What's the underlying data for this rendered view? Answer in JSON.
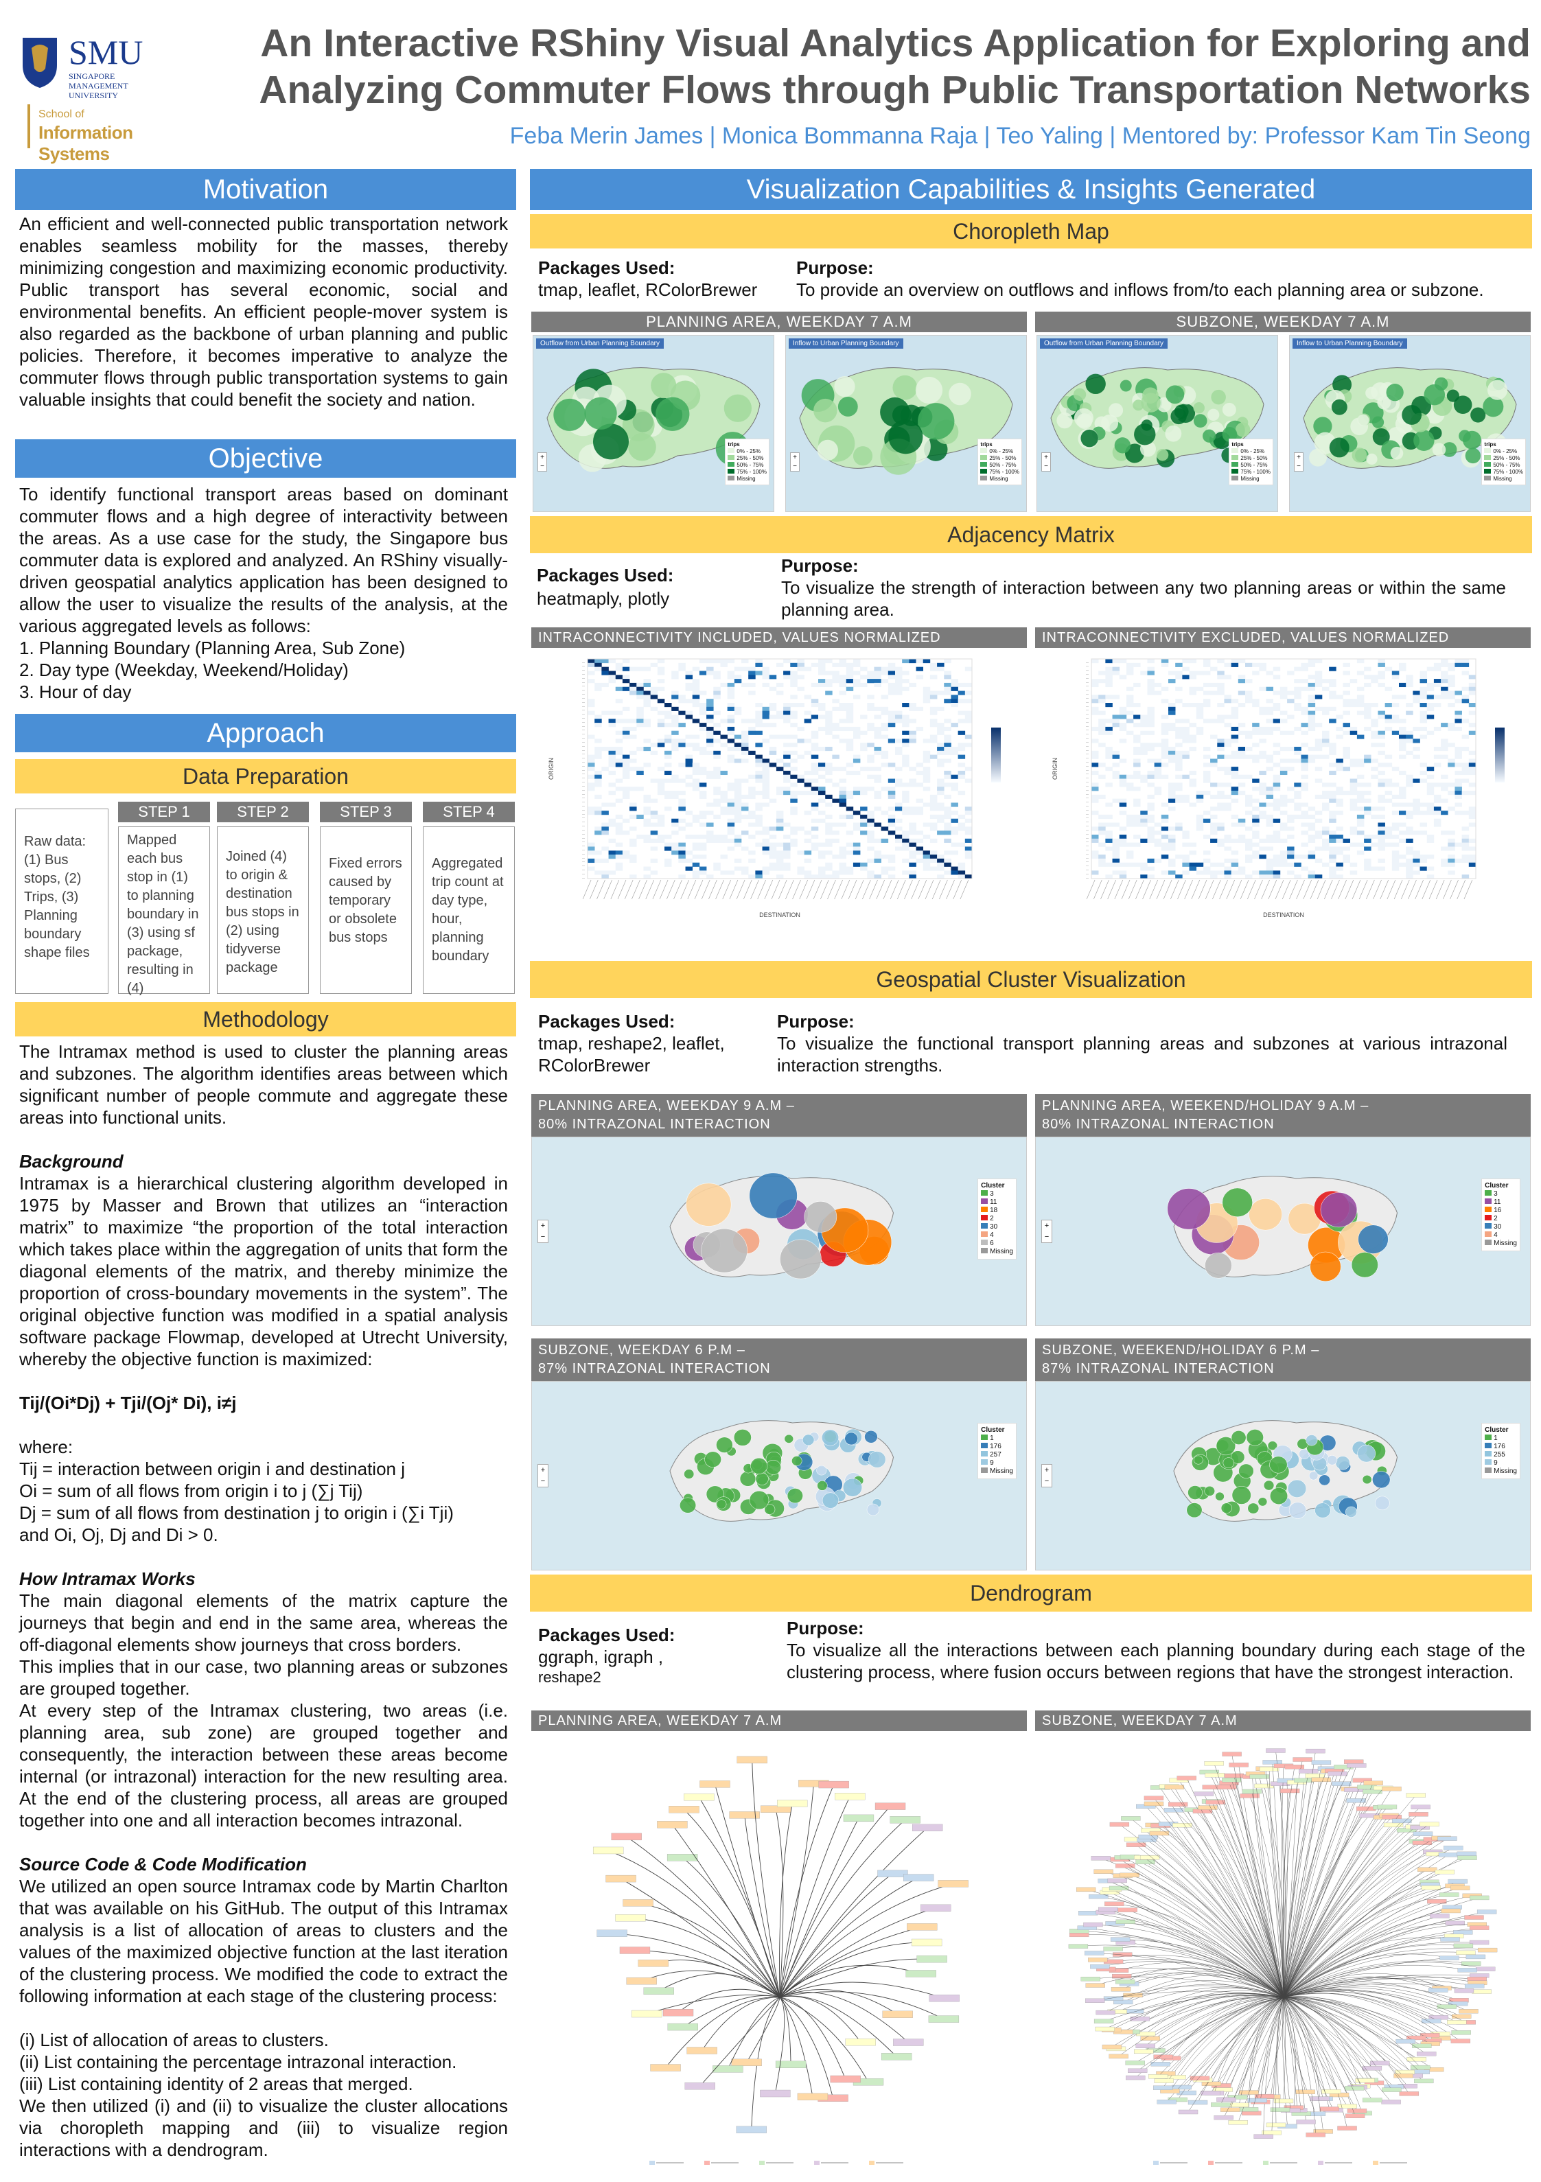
{
  "logo": {
    "name": "SMU",
    "subname": "SINGAPORE MANAGEMENT UNIVERSITY",
    "school": "School of",
    "school2": "Information Systems"
  },
  "title": {
    "line1": "An Interactive RShiny Visual Analytics Application for Exploring and",
    "line2": "Analyzing Commuter Flows through Public Transportation Networks",
    "authors": "Feba Merin James | Monica Bommanna Raja | Teo Yaling  | Mentored by: Professor Kam Tin Seong"
  },
  "motivation": {
    "title": "Motivation",
    "text": "An efficient and well-connected public transportation network enables seamless mobility for the masses, thereby minimizing congestion and maximizing economic productivity. Public transport has several economic, social and environmental benefits. An efficient people-mover system is also regarded as the backbone of urban planning and public policies. Therefore, it becomes imperative to analyze the commuter flows through public transportation systems to gain valuable insights that could benefit the society and nation."
  },
  "objective": {
    "title": "Objective",
    "text": "To identify functional transport areas based on dominant commuter flows and a high degree of interactivity between the areas. As a use case for the study, the Singapore bus commuter data is explored and analyzed. An RShiny visually-driven geospatial analytics application has been designed to allow  the user to visualize the results of the analysis, at the various aggregated levels as follows:",
    "items": [
      "1. Planning Boundary (Planning Area, Sub Zone)",
      "2. Day type (Weekday, Weekend/Holiday)",
      "3. Hour of day"
    ]
  },
  "approach": {
    "title": "Approach",
    "data_prep": "Data Preparation",
    "raw": "Raw data: (1) Bus stops, (2) Trips, (3) Planning boundary shape files",
    "steps": [
      {
        "label": "STEP 1",
        "text": "Mapped each bus stop in (1) to planning boundary in (3) using sf package, resulting in (4)"
      },
      {
        "label": "STEP 2",
        "text": "Joined (4) to origin & destination bus stops in (2) using tidyverse package"
      },
      {
        "label": "STEP 3",
        "text": "Fixed errors caused by temporary or obsolete bus stops"
      },
      {
        "label": "STEP 4",
        "text": "Aggregated trip count at day type, hour, planning boundary"
      }
    ]
  },
  "methodology": {
    "title": "Methodology",
    "intro": "The Intramax method is used to cluster the planning areas and subzones. The algorithm identifies areas between which significant number of people commute and aggregate these areas into functional units.",
    "bg_title": "Background",
    "bg_text": "Intramax is a hierarchical clustering algorithm developed in 1975 by Masser and Brown that utilizes an “interaction matrix” to maximize “the proportion of the total interaction which takes place within the aggregation of units that form the diagonal elements of the matrix, and thereby minimize the proportion of cross-boundary movements in the system”. The original objective function was modified in a spatial analysis software package Flowmap, developed at Utrecht University, whereby the objective function is maximized:",
    "formula": "Tij/(Oi*Dj) + Tji/(Oj* Di),   i≠j",
    "where": "where:",
    "defs": [
      "Tij  =  interaction  between  origin  i  and  destination  j",
      "Oi  =  sum of    all flows from origin i to j (∑j Tij)",
      "Dj = sum of all flows from destination j to origin i (∑i Tji)",
      "and Oi, Oj, Dj and Di > 0."
    ],
    "how_title": "How Intramax Works",
    "how_text": [
      "The main diagonal elements of the matrix capture the journeys that begin and end in the same area, whereas the off-diagonal elements show journeys that cross borders.",
      "This implies that in our case, two planning areas or subzones are grouped together.",
      "At every step of the Intramax clustering, two areas (i.e. planning area, sub zone) are grouped together and consequently, the interaction between these areas become internal (or intrazonal) interaction for the new resulting area. At the end of the clustering process, all areas are grouped together into one and all interaction becomes intrazonal."
    ],
    "src_title": "Source Code & Code Modification",
    "src_text": "We utilized an open source Intramax code by Martin Charlton that was available on his GitHub. The output of this Intramax analysis is a list of allocation of areas to clusters and the values of the maximized objective function at the last iteration of the clustering process. We modified the code to extract the following information at each stage of the clustering process:",
    "src_items": [
      "(i) List of allocation of areas to clusters.",
      "(ii) List containing the percentage intrazonal interaction.",
      "(iii) List containing identity of 2 areas that merged."
    ],
    "src_end": "We then utilized (i) and (ii) to visualize the cluster allocations via choropleth mapping and (iii) to visualize region interactions with a dendrogram."
  },
  "viz": {
    "title": "Visualization Capabilities & Insights Generated",
    "choro": {
      "title": "Choropleth Map",
      "pk_h": "Packages Used:",
      "pk": "tmap, leaflet, RColorBrewer",
      "pu_h": "Purpose:",
      "pu": "To provide an overview on outflows and inflows from/to each planning area or subzone.",
      "left": "PLANNING AREA, WEEKDAY 7 A.M",
      "right": "SUBZONE, WEEKDAY 7 A.M",
      "map_out": "Outflow from Urban Planning Boundary",
      "map_in": "Inflow to Urban Planning Boundary",
      "legend_title": "trips",
      "legend": [
        "0% - 25%",
        "25% - 50%",
        "50% - 75%",
        "75% - 100%",
        "Missing"
      ]
    },
    "adj": {
      "title": "Adjacency Matrix",
      "pk_h": "Packages Used:",
      "pk": "heatmaply, plotly",
      "pu_h": "Purpose:",
      "pu": "To visualize the strength of interaction between any two planning areas or within the same planning area.",
      "left": "INTRACONNECTIVITY  INCLUDED,  VALUES  NORMALIZED",
      "right": "INTRACONNECTIVITY  EXCLUDED,  VALUES  NORMALIZED",
      "xlabel": "DESTINATION",
      "ylabel": "ORIGIN"
    },
    "geo": {
      "title": "Geospatial  Cluster Visualization",
      "pk_h": "Packages Used:",
      "pk": "tmap, reshape2, leaflet, RColorBrewer",
      "pu_h": "Purpose:",
      "pu": "To visualize the functional transport planning areas and subzones at various intrazonal interaction strengths.",
      "maps": [
        {
          "l1": "PLANNING  AREA,  WEEKDAY  9 A.M –",
          "l2": "80%  INTRAZONAL  INTERACTION",
          "legend": [
            "3",
            "11",
            "18",
            "2",
            "30",
            "4",
            "6",
            "Missing"
          ]
        },
        {
          "l1": "PLANNING  AREA,  WEEKEND/HOLIDAY  9 A.M –",
          "l2": "80%  INTRAZONAL  INTERACTION",
          "legend": [
            "3",
            "11",
            "16",
            "2",
            "30",
            "4",
            "Missing"
          ]
        },
        {
          "l1": "SUBZONE,  WEEKDAY  6 P.M –",
          "l2": "87%  INTRAZONAL  INTERACTION",
          "legend": [
            "1",
            "176",
            "257",
            "9",
            "Missing"
          ]
        },
        {
          "l1": "SUBZONE,  WEEKEND/HOLIDAY  6 P.M –",
          "l2": "87%  INTRAZONAL  INTERACTION",
          "legend": [
            "1",
            "176",
            "255",
            "9",
            "Missing"
          ]
        }
      ],
      "cluster": "Cluster"
    },
    "dendro": {
      "title": "Dendrogram",
      "pk_h": "Packages Used:",
      "pk": "ggraph, igraph ,",
      "pk2": "reshape2",
      "pu_h": "Purpose:",
      "pu": "To visualize all the interactions between each planning boundary during each stage of the clustering process, where fusion occurs between regions that have the strongest interaction.",
      "left": "PLANNING  AREA,  WEEKDAY  7 A.M",
      "right": "SUBZONE,  WEEKDAY  7 A.M"
    }
  },
  "colors": {
    "blue": "#4a8fd6",
    "yellow": "#ffd45c",
    "grey": "#7b7b7b",
    "navy": "#1a3a8c",
    "gold": "#c89b3c"
  }
}
